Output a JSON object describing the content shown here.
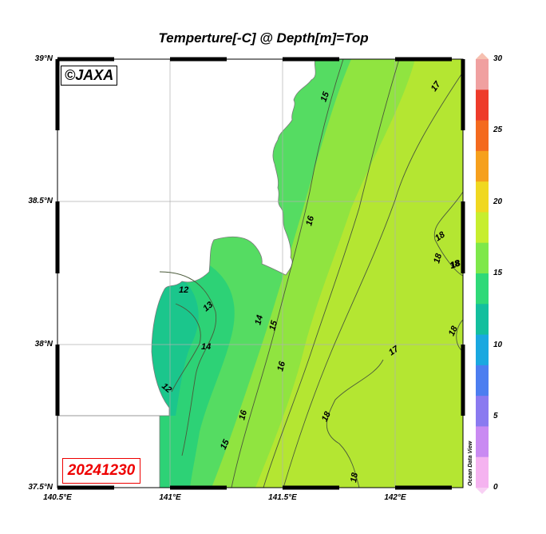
{
  "title": "Temperture[-C] @ Depth[m]=Top",
  "copyright": "©JAXA",
  "date": "20241230",
  "watermark": "Ocean Data View",
  "latitude_labels": [
    "39°N",
    "38.5°N",
    "38°N",
    "37.5°N"
  ],
  "longitude_labels": [
    "140.5°E",
    "141°E",
    "141.5°E",
    "142°E"
  ],
  "colorbar": {
    "ticks": [
      "0",
      "5",
      "10",
      "15",
      "20",
      "25",
      "30"
    ],
    "range": [
      0,
      30
    ],
    "colors": [
      "#f5b3f0",
      "#c98af2",
      "#8a7af0",
      "#4c7ef0",
      "#1aa8e0",
      "#13bf9e",
      "#2fd978",
      "#7ee84a",
      "#c7ee2e",
      "#f0d820",
      "#f6a01c",
      "#f46a1e",
      "#ee3b2a",
      "#f0a0a0"
    ]
  },
  "contour_labels": [
    "15",
    "17",
    "16",
    "18",
    "18",
    "18",
    "12",
    "13",
    "14",
    "14",
    "15",
    "16",
    "17",
    "18",
    "18",
    "12",
    "16",
    "15",
    "18",
    "18"
  ],
  "palette": {
    "land": "#ffffff",
    "cold": "#19c78c",
    "mid": "#3fe070",
    "warm": "#a6e63a",
    "warmest": "#b6e830"
  }
}
